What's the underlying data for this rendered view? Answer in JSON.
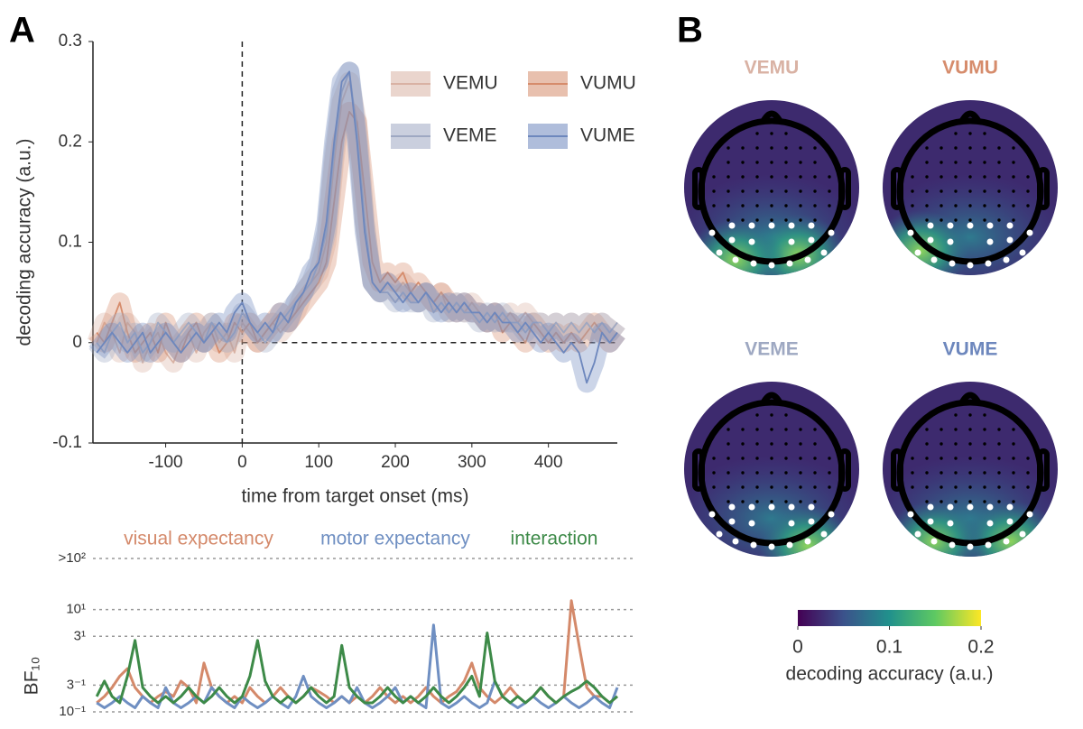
{
  "panel_labels": [
    "A",
    "B"
  ],
  "chart_data": [
    {
      "type": "line",
      "ylabel": "decoding accuracy (a.u.)",
      "xlabel": "time from target onset (ms)",
      "xlim": [
        -195,
        490
      ],
      "xticks": [
        -100,
        0,
        100,
        200,
        300,
        400
      ],
      "ylim": [
        -0.1,
        0.3
      ],
      "yticks": [
        -0.1,
        0,
        0.1,
        0.2,
        0.3
      ],
      "x": [
        -190,
        -180,
        -170,
        -160,
        -150,
        -140,
        -130,
        -120,
        -110,
        -100,
        -90,
        -80,
        -70,
        -60,
        -50,
        -40,
        -30,
        -20,
        -10,
        0,
        10,
        20,
        30,
        40,
        50,
        60,
        70,
        80,
        90,
        100,
        110,
        120,
        130,
        140,
        150,
        160,
        170,
        180,
        190,
        200,
        210,
        220,
        230,
        240,
        250,
        260,
        270,
        280,
        290,
        300,
        310,
        320,
        330,
        340,
        350,
        360,
        370,
        380,
        390,
        400,
        410,
        420,
        430,
        440,
        450,
        460,
        470,
        480,
        490
      ],
      "series": [
        {
          "name": "VEMU",
          "color": "#d9b2a4",
          "values": [
            0.0,
            0.02,
            0.01,
            -0.01,
            0.02,
            0.01,
            -0.02,
            0.0,
            0.01,
            -0.01,
            -0.02,
            0.0,
            0.01,
            -0.01,
            0.01,
            0.02,
            0.0,
            0.01,
            -0.01,
            0.02,
            0.01,
            0.0,
            0.01,
            0.02,
            0.01,
            0.02,
            0.03,
            0.05,
            0.06,
            0.07,
            0.1,
            0.18,
            0.24,
            0.26,
            0.22,
            0.12,
            0.06,
            0.05,
            0.06,
            0.05,
            0.06,
            0.05,
            0.04,
            0.05,
            0.04,
            0.05,
            0.03,
            0.04,
            0.03,
            0.04,
            0.03,
            0.02,
            0.03,
            0.02,
            0.03,
            0.02,
            0.03,
            0.02,
            0.02,
            0.01,
            0.02,
            0.01,
            0.02,
            0.01,
            0.02,
            0.01,
            0.02,
            0.01,
            0.02
          ]
        },
        {
          "name": "VUMU",
          "color": "#d68c6c",
          "values": [
            0.01,
            0.0,
            0.02,
            0.04,
            0.01,
            -0.01,
            0.0,
            0.01,
            -0.01,
            0.02,
            0.0,
            -0.01,
            0.01,
            0.02,
            0.0,
            0.01,
            -0.01,
            0.0,
            0.02,
            0.01,
            0.02,
            0.0,
            0.01,
            0.02,
            0.03,
            0.02,
            0.03,
            0.04,
            0.05,
            0.06,
            0.08,
            0.14,
            0.2,
            0.23,
            0.22,
            0.15,
            0.08,
            0.06,
            0.07,
            0.06,
            0.07,
            0.05,
            0.06,
            0.05,
            0.04,
            0.05,
            0.04,
            0.03,
            0.04,
            0.03,
            0.03,
            0.02,
            0.03,
            0.01,
            0.02,
            0.01,
            0.0,
            0.02,
            0.01,
            0.0,
            0.01,
            0.0,
            0.01,
            0.0,
            0.01,
            0.02,
            0.01,
            0.0,
            0.01
          ]
        },
        {
          "name": "VEME",
          "color": "#9ea8c2",
          "values": [
            0.0,
            -0.01,
            0.01,
            0.02,
            0.0,
            0.01,
            -0.01,
            0.0,
            0.02,
            0.01,
            0.0,
            0.01,
            0.02,
            0.01,
            0.0,
            0.02,
            0.01,
            0.0,
            0.01,
            0.03,
            0.02,
            0.01,
            0.0,
            0.01,
            0.02,
            0.03,
            0.04,
            0.05,
            0.06,
            0.08,
            0.11,
            0.19,
            0.25,
            0.27,
            0.21,
            0.12,
            0.06,
            0.05,
            0.05,
            0.04,
            0.05,
            0.04,
            0.04,
            0.05,
            0.03,
            0.04,
            0.03,
            0.04,
            0.03,
            0.03,
            0.02,
            0.03,
            0.02,
            0.03,
            0.02,
            0.02,
            0.01,
            0.02,
            0.02,
            0.01,
            0.02,
            0.01,
            0.02,
            0.01,
            0.02,
            0.01,
            0.02,
            0.01,
            0.02
          ]
        },
        {
          "name": "VUME",
          "color": "#6d87bd",
          "values": [
            -0.01,
            0.0,
            0.01,
            0.0,
            -0.01,
            0.0,
            0.01,
            -0.01,
            0.0,
            0.01,
            0.0,
            -0.01,
            0.0,
            0.01,
            0.0,
            0.01,
            0.02,
            0.01,
            0.03,
            0.04,
            0.02,
            0.01,
            0.02,
            0.01,
            0.03,
            0.02,
            0.04,
            0.05,
            0.07,
            0.08,
            0.12,
            0.2,
            0.26,
            0.27,
            0.2,
            0.11,
            0.06,
            0.05,
            0.06,
            0.05,
            0.04,
            0.05,
            0.04,
            0.05,
            0.04,
            0.03,
            0.04,
            0.03,
            0.04,
            0.03,
            0.03,
            0.02,
            0.03,
            0.02,
            0.02,
            0.01,
            0.02,
            0.01,
            0.0,
            0.01,
            0.0,
            -0.01,
            0.0,
            -0.01,
            -0.04,
            -0.02,
            0.01,
            0.0,
            0.01
          ]
        }
      ]
    },
    {
      "type": "line",
      "ylabel": "BF₁₀",
      "yscale": "log",
      "grid": true,
      "xlim": [
        -195,
        490
      ],
      "ylim": [
        0.1,
        100
      ],
      "yticks": [
        {
          "value": 0.1,
          "label": "10⁻¹"
        },
        {
          "value": 0.3333,
          "label": "3⁻¹"
        },
        {
          "value": 3,
          "label": "3¹"
        },
        {
          "value": 10,
          "label": "10¹"
        },
        {
          "value": 100,
          "label": ">10²"
        }
      ],
      "x": [
        -190,
        -180,
        -170,
        -160,
        -150,
        -140,
        -130,
        -120,
        -110,
        -100,
        -90,
        -80,
        -70,
        -60,
        -50,
        -40,
        -30,
        -20,
        -10,
        0,
        10,
        20,
        30,
        40,
        50,
        60,
        70,
        80,
        90,
        100,
        110,
        120,
        130,
        140,
        150,
        160,
        170,
        180,
        190,
        200,
        210,
        220,
        230,
        240,
        250,
        260,
        270,
        280,
        290,
        300,
        310,
        320,
        330,
        340,
        350,
        360,
        370,
        380,
        390,
        400,
        410,
        420,
        430,
        440,
        450,
        460,
        470,
        480,
        490
      ],
      "series": [
        {
          "name": "visual expectancy",
          "color": "#d4896a",
          "values": [
            0.15,
            0.2,
            0.3,
            0.5,
            0.7,
            0.3,
            0.2,
            0.15,
            0.2,
            0.25,
            0.2,
            0.4,
            0.3,
            0.15,
            0.9,
            0.3,
            0.2,
            0.15,
            0.2,
            0.15,
            0.3,
            0.2,
            0.15,
            0.2,
            0.3,
            0.2,
            0.15,
            0.2,
            0.3,
            0.25,
            0.2,
            0.15,
            0.2,
            0.15,
            0.2,
            0.15,
            0.2,
            0.3,
            0.2,
            0.15,
            0.2,
            0.15,
            0.2,
            0.3,
            0.2,
            0.15,
            0.2,
            0.25,
            0.4,
            0.9,
            0.3,
            0.2,
            0.15,
            0.2,
            0.3,
            0.2,
            0.15,
            0.2,
            0.3,
            0.2,
            0.15,
            0.2,
            15,
            2,
            0.3,
            0.2,
            0.2,
            0.15,
            0.2
          ]
        },
        {
          "name": "motor expectancy",
          "color": "#6f8fc2",
          "values": [
            0.15,
            0.12,
            0.15,
            0.2,
            0.15,
            0.12,
            0.2,
            0.15,
            0.12,
            0.3,
            0.15,
            0.12,
            0.15,
            0.2,
            0.15,
            0.3,
            0.2,
            0.15,
            0.12,
            0.2,
            0.15,
            0.12,
            0.15,
            0.2,
            0.15,
            0.12,
            0.2,
            0.5,
            0.2,
            0.15,
            0.12,
            0.15,
            0.2,
            0.15,
            0.3,
            0.15,
            0.12,
            0.15,
            0.2,
            0.3,
            0.15,
            0.2,
            0.15,
            0.12,
            5,
            0.15,
            0.12,
            0.15,
            0.2,
            0.15,
            0.12,
            0.15,
            0.4,
            0.2,
            0.15,
            0.12,
            0.15,
            0.2,
            0.15,
            0.12,
            0.15,
            0.2,
            0.15,
            0.12,
            0.15,
            0.2,
            0.15,
            0.12,
            0.3
          ]
        },
        {
          "name": "interaction",
          "color": "#3d8a48",
          "values": [
            0.2,
            0.4,
            0.2,
            0.15,
            0.5,
            2.5,
            0.3,
            0.2,
            0.15,
            0.2,
            0.15,
            0.2,
            0.3,
            0.2,
            0.15,
            0.2,
            0.3,
            0.2,
            0.15,
            0.2,
            0.5,
            2.5,
            0.4,
            0.2,
            0.15,
            0.2,
            0.15,
            0.2,
            0.3,
            0.2,
            0.15,
            0.2,
            2,
            0.3,
            0.2,
            0.15,
            0.15,
            0.2,
            0.3,
            0.2,
            0.15,
            0.2,
            0.15,
            0.2,
            0.3,
            0.2,
            0.15,
            0.2,
            0.3,
            0.5,
            0.2,
            3.5,
            0.4,
            0.2,
            0.15,
            0.2,
            0.15,
            0.2,
            0.3,
            0.2,
            0.15,
            0.2,
            0.25,
            0.3,
            0.4,
            0.3,
            0.2,
            0.15,
            0.2
          ]
        }
      ]
    },
    {
      "type": "topomap",
      "maps": [
        {
          "name": "VEMU",
          "color": "#d9b2a4"
        },
        {
          "name": "VUMU",
          "color": "#d68c6c"
        },
        {
          "name": "VEME",
          "color": "#9ea8c2"
        },
        {
          "name": "VUME",
          "color": "#6d87bd"
        }
      ],
      "colorbar_label": "decoding accuracy (a.u.)",
      "xlim": [
        0,
        0.2
      ],
      "xticks": [
        0,
        0.1,
        0.2
      ]
    }
  ]
}
